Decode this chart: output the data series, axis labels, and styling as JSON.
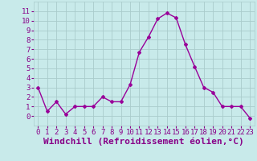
{
  "x": [
    0,
    1,
    2,
    3,
    4,
    5,
    6,
    7,
    8,
    9,
    10,
    11,
    12,
    13,
    14,
    15,
    16,
    17,
    18,
    19,
    20,
    21,
    22,
    23
  ],
  "y": [
    3,
    0.5,
    1.5,
    0.2,
    1,
    1,
    1,
    2,
    1.5,
    1.5,
    3.3,
    6.7,
    8.3,
    10.2,
    10.8,
    10.3,
    7.5,
    5.2,
    3,
    2.5,
    1,
    1,
    1,
    -0.2
  ],
  "line_color": "#990099",
  "marker": "D",
  "marker_size": 2,
  "bg_color": "#c8eaea",
  "grid_color": "#aacccc",
  "xlabel": "Windchill (Refroidissement éolien,°C)",
  "xlim": [
    -0.5,
    23.5
  ],
  "ylim": [
    -1,
    12
  ],
  "yticks": [
    0,
    1,
    2,
    3,
    4,
    5,
    6,
    7,
    8,
    9,
    10,
    11
  ],
  "xticks": [
    0,
    1,
    2,
    3,
    4,
    5,
    6,
    7,
    8,
    9,
    10,
    11,
    12,
    13,
    14,
    15,
    16,
    17,
    18,
    19,
    20,
    21,
    22,
    23
  ],
  "tick_fontsize": 6.5,
  "xlabel_fontsize": 8,
  "line_width": 1.0,
  "label_color": "#880088"
}
